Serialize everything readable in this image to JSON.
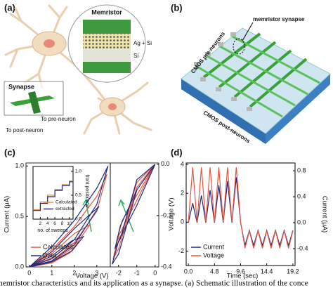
{
  "figure": {
    "panel_labels": [
      "(a)",
      "(b)",
      "(c)",
      "(d)"
    ],
    "a": {
      "memristor": "Memristor",
      "ag_si": "Ag + Si",
      "si": "Si",
      "synapse": "Synapse",
      "to_pre": "To pre-neuron",
      "to_post": "To post-neuron"
    },
    "b": {
      "synapse": "memristor synapse",
      "pre": "CMOS pre-neurons",
      "post": "CMOS post-neurons"
    },
    "caption": "nemristor characteristics and its application as a synapse. (a) Schematic illustration of the conce"
  },
  "chart_data": [
    {
      "type": "line",
      "xlabel": "Voltage (V)",
      "ylabel": "Current (μA)",
      "xlim": [
        -0.15,
        3.6
      ],
      "ylim": [
        0,
        1.03
      ],
      "xticks": [
        0,
        1,
        2,
        3
      ],
      "yticks": [
        {
          "value": 0,
          "label": "0.0"
        },
        {
          "value": 0.5,
          "label": "0.5"
        },
        {
          "value": 1,
          "label": "1.0"
        }
      ],
      "series": [
        {
          "name": "Calculated",
          "color": "#e8543f",
          "x": [
            0,
            1,
            1.8,
            2.2,
            1.8,
            1,
            0,
            null,
            0,
            1,
            2,
            2.7,
            2,
            1,
            0,
            null,
            0,
            1,
            2,
            3,
            3.45,
            3,
            2,
            1,
            0
          ],
          "values": [
            0,
            0.04,
            0.14,
            0.25,
            0.22,
            0.09,
            0,
            null,
            0,
            0.05,
            0.2,
            0.42,
            0.33,
            0.13,
            0,
            null,
            0,
            0.06,
            0.24,
            0.55,
            0.92,
            0.7,
            0.4,
            0.17,
            0
          ]
        },
        {
          "name": "Data",
          "color": "#1f2a7a",
          "x": [
            0,
            1,
            1.9,
            2.4,
            1.9,
            1,
            0,
            null,
            0,
            1,
            2,
            3.1,
            2,
            1,
            0,
            null,
            0,
            1,
            2,
            3,
            3.5,
            3,
            2,
            1,
            0
          ],
          "values": [
            0,
            0.05,
            0.16,
            0.3,
            0.26,
            0.11,
            0,
            null,
            0,
            0.06,
            0.22,
            0.6,
            0.38,
            0.15,
            0,
            null,
            0,
            0.08,
            0.27,
            0.62,
            1.0,
            0.78,
            0.46,
            0.2,
            0
          ]
        }
      ]
    },
    {
      "type": "line",
      "xlim": [
        -2.45,
        0.2
      ],
      "ylim": [
        -0.4,
        0.005
      ],
      "xticks": [
        -2,
        -1,
        0
      ],
      "yticks": [
        {
          "value": 0,
          "label": "0.0"
        },
        {
          "value": -0.2,
          "label": "-0.2"
        },
        {
          "value": -0.4,
          "label": "-0.4"
        }
      ],
      "series": [
        {
          "color": "#e8543f",
          "x": [
            0,
            -1,
            -1.8,
            -2.1,
            -1.8,
            -1,
            0,
            null,
            0,
            -1,
            -2,
            -2.3,
            -2,
            -1,
            0
          ],
          "values": [
            0,
            -0.12,
            -0.22,
            -0.3,
            -0.27,
            -0.07,
            0,
            null,
            0,
            -0.14,
            -0.28,
            -0.37,
            -0.33,
            -0.09,
            0
          ]
        },
        {
          "color": "#1f2a7a",
          "x": [
            0,
            -1,
            -1.9,
            -2.2,
            -1.9,
            -1,
            0,
            null,
            0,
            -1,
            -2,
            -2.35,
            -2,
            -1,
            0
          ],
          "values": [
            0,
            -0.1,
            -0.24,
            -0.33,
            -0.29,
            -0.06,
            0,
            null,
            0,
            -0.16,
            -0.3,
            -0.39,
            -0.35,
            -0.1,
            0
          ]
        }
      ]
    },
    {
      "type": "line",
      "xlabel": "no. of sweeps",
      "ylabel": "front position w",
      "xlim": [
        0,
        11
      ],
      "ylim": [
        0,
        1.1
      ],
      "xticks": [
        2,
        4,
        6,
        8,
        10
      ],
      "yticks": [
        {
          "value": 0,
          "label": "0.0"
        },
        {
          "value": 0.5,
          "label": "0.5"
        },
        {
          "value": 1,
          "label": "1.0"
        }
      ],
      "series": [
        {
          "name": "Calculated",
          "color": "#f08a3c",
          "x": [
            0,
            2,
            2,
            4,
            4,
            6,
            6,
            8,
            8,
            10,
            10,
            11
          ],
          "values": [
            0.2,
            0.2,
            0.36,
            0.36,
            0.5,
            0.5,
            0.62,
            0.62,
            0.72,
            0.72,
            0.8,
            0.8
          ]
        },
        {
          "name": "extracted",
          "color": "#1f2a7a",
          "x": [
            0,
            2,
            2,
            4,
            4,
            6,
            6,
            8,
            8,
            10,
            10,
            11
          ],
          "values": [
            0.18,
            0.18,
            0.33,
            0.33,
            0.47,
            0.47,
            0.6,
            0.6,
            0.7,
            0.7,
            0.78,
            0.78
          ]
        }
      ]
    },
    {
      "type": "line",
      "xlabel": "Time (sec)",
      "ylabel": "Voltage (V)",
      "y2label": "Current (μA)",
      "xlim": [
        -0.4,
        19.6
      ],
      "ylim": [
        -3,
        4.1
      ],
      "y2lim": [
        -0.66,
        0.92
      ],
      "xticks": [
        {
          "value": 0,
          "label": "0.0"
        },
        4.8,
        9.6,
        14.4,
        19.2
      ],
      "yticks": [
        -2,
        0,
        2,
        4
      ],
      "y2ticks": [
        {
          "value": -0.4,
          "label": "-0.4"
        },
        {
          "value": 0,
          "label": "0.0"
        },
        {
          "value": 0.4,
          "label": "0.4"
        },
        {
          "value": 0.8,
          "label": "0.8"
        }
      ],
      "x": [
        0,
        0.8,
        1.6,
        2.4,
        3.2,
        4,
        4.8,
        5.6,
        6.4,
        7.2,
        8,
        8.8,
        9.6,
        10.4,
        11.2,
        12,
        12.8,
        13.6,
        14.4,
        15.2,
        16,
        16.8,
        17.6,
        18.4,
        19.2
      ],
      "series": [
        {
          "name": "Current",
          "color": "#1f2a7a",
          "axis": "y2",
          "values": [
            0,
            0.3,
            0,
            0.42,
            0,
            0.5,
            0,
            0.58,
            0,
            0.64,
            0,
            0.7,
            0,
            -0.35,
            -0.12,
            -0.35,
            -0.12,
            -0.35,
            -0.12,
            -0.35,
            -0.12,
            -0.35,
            -0.12,
            -0.35,
            -0.12
          ]
        },
        {
          "name": "Voltage",
          "color": "#e8543f",
          "values": [
            0,
            3.8,
            0,
            3.8,
            0,
            3.8,
            0,
            3.8,
            0,
            3.8,
            0,
            3.8,
            0,
            -1.8,
            -0.6,
            -1.8,
            -0.6,
            -1.8,
            -0.6,
            -1.8,
            -0.6,
            -1.8,
            -0.6,
            -1.8,
            -0.6
          ]
        }
      ]
    }
  ]
}
